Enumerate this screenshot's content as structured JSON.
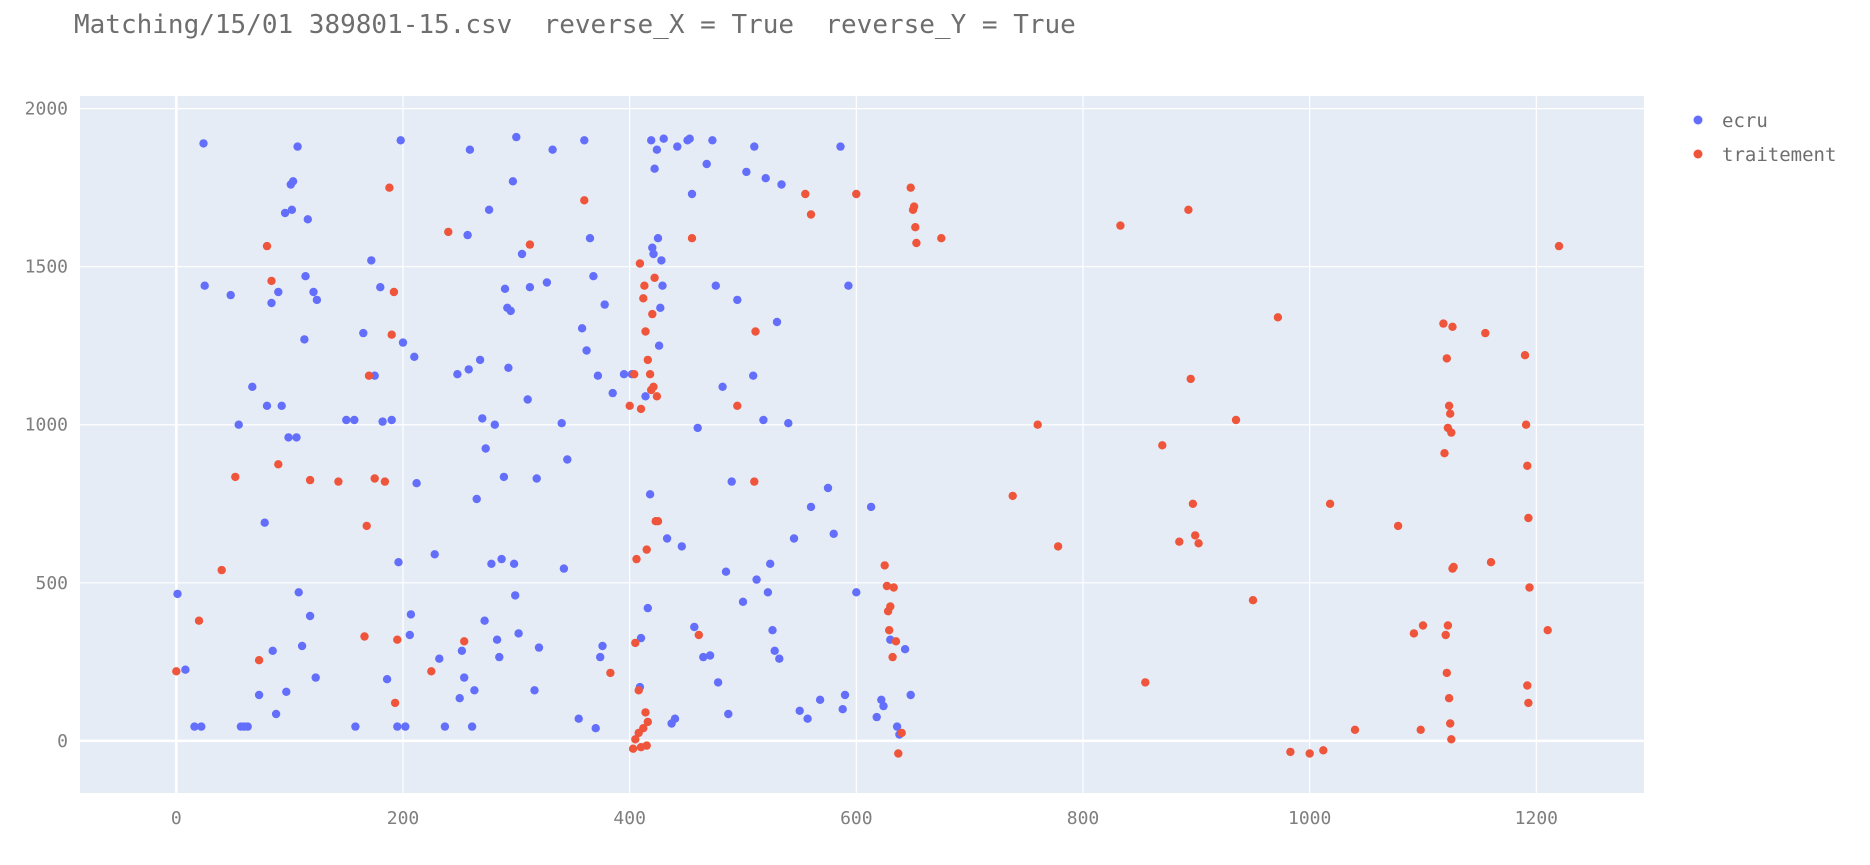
{
  "chart_data": {
    "type": "scatter",
    "title": "Matching/15/01 389801-15.csv  reverse_X = True  reverse_Y = True",
    "xlabel": "",
    "ylabel": "",
    "xlim": [
      -85,
      1295
    ],
    "ylim": [
      -165,
      2040
    ],
    "x_ticks": [
      0,
      200,
      400,
      600,
      800,
      1000,
      1200
    ],
    "y_ticks": [
      0,
      500,
      1000,
      1500,
      2000
    ],
    "x_tick_labels": [
      "0",
      "200",
      "400",
      "600",
      "800",
      "1000",
      "1200"
    ],
    "y_tick_labels": [
      "0",
      "500",
      "1000",
      "1500",
      "2000"
    ],
    "grid": true,
    "legend_position": "top-right",
    "plot_bgcolor": "#E5ECF6",
    "series": [
      {
        "name": "ecru",
        "color": "#636EFA",
        "points": [
          [
            1,
            465
          ],
          [
            8,
            225
          ],
          [
            16,
            45
          ],
          [
            22,
            45
          ],
          [
            24,
            1890
          ],
          [
            25,
            1440
          ],
          [
            48,
            1410
          ],
          [
            55,
            1000
          ],
          [
            57,
            45
          ],
          [
            60,
            45
          ],
          [
            63,
            45
          ],
          [
            67,
            1120
          ],
          [
            73,
            145
          ],
          [
            78,
            690
          ],
          [
            80,
            1060
          ],
          [
            84,
            1385
          ],
          [
            85,
            285
          ],
          [
            88,
            85
          ],
          [
            90,
            1420
          ],
          [
            93,
            1060
          ],
          [
            96,
            1670
          ],
          [
            97,
            155
          ],
          [
            99,
            960
          ],
          [
            101,
            1760
          ],
          [
            102,
            1680
          ],
          [
            103,
            1770
          ],
          [
            106,
            960
          ],
          [
            107,
            1880
          ],
          [
            108,
            470
          ],
          [
            111,
            300
          ],
          [
            113,
            1270
          ],
          [
            114,
            1470
          ],
          [
            116,
            1650
          ],
          [
            118,
            395
          ],
          [
            121,
            1420
          ],
          [
            123,
            200
          ],
          [
            124,
            1395
          ],
          [
            150,
            1015
          ],
          [
            157,
            1015
          ],
          [
            158,
            45
          ],
          [
            165,
            1290
          ],
          [
            172,
            1520
          ],
          [
            175,
            1155
          ],
          [
            180,
            1435
          ],
          [
            182,
            1010
          ],
          [
            186,
            195
          ],
          [
            190,
            1015
          ],
          [
            195,
            45
          ],
          [
            196,
            565
          ],
          [
            198,
            1900
          ],
          [
            200,
            1260
          ],
          [
            202,
            45
          ],
          [
            206,
            335
          ],
          [
            207,
            400
          ],
          [
            210,
            1215
          ],
          [
            212,
            815
          ],
          [
            228,
            590
          ],
          [
            232,
            260
          ],
          [
            237,
            45
          ],
          [
            248,
            1160
          ],
          [
            250,
            135
          ],
          [
            252,
            285
          ],
          [
            254,
            200
          ],
          [
            257,
            1600
          ],
          [
            258,
            1175
          ],
          [
            259,
            1870
          ],
          [
            261,
            45
          ],
          [
            263,
            160
          ],
          [
            265,
            765
          ],
          [
            268,
            1205
          ],
          [
            270,
            1020
          ],
          [
            272,
            380
          ],
          [
            273,
            925
          ],
          [
            276,
            1680
          ],
          [
            278,
            560
          ],
          [
            281,
            1000
          ],
          [
            283,
            320
          ],
          [
            285,
            265
          ],
          [
            287,
            575
          ],
          [
            289,
            835
          ],
          [
            290,
            1430
          ],
          [
            292,
            1370
          ],
          [
            293,
            1180
          ],
          [
            295,
            1360
          ],
          [
            297,
            1770
          ],
          [
            298,
            560
          ],
          [
            299,
            460
          ],
          [
            300,
            1910
          ],
          [
            302,
            340
          ],
          [
            305,
            1540
          ],
          [
            310,
            1080
          ],
          [
            312,
            1435
          ],
          [
            316,
            160
          ],
          [
            318,
            830
          ],
          [
            320,
            295
          ],
          [
            327,
            1450
          ],
          [
            332,
            1870
          ],
          [
            340,
            1005
          ],
          [
            342,
            545
          ],
          [
            345,
            890
          ],
          [
            355,
            70
          ],
          [
            358,
            1305
          ],
          [
            360,
            1900
          ],
          [
            362,
            1235
          ],
          [
            365,
            1590
          ],
          [
            368,
            1470
          ],
          [
            370,
            40
          ],
          [
            372,
            1155
          ],
          [
            374,
            265
          ],
          [
            376,
            300
          ],
          [
            378,
            1380
          ],
          [
            385,
            1100
          ],
          [
            395,
            1160
          ],
          [
            402,
            1160
          ],
          [
            409,
            170
          ],
          [
            410,
            325
          ],
          [
            414,
            1090
          ],
          [
            416,
            420
          ],
          [
            418,
            780
          ],
          [
            419,
            1900
          ],
          [
            420,
            1560
          ],
          [
            421,
            1540
          ],
          [
            422,
            1810
          ],
          [
            424,
            1870
          ],
          [
            425,
            1590
          ],
          [
            426,
            1250
          ],
          [
            427,
            1370
          ],
          [
            428,
            1520
          ],
          [
            429,
            1440
          ],
          [
            430,
            1905
          ],
          [
            433,
            640
          ],
          [
            437,
            55
          ],
          [
            440,
            70
          ],
          [
            442,
            1880
          ],
          [
            446,
            615
          ],
          [
            451,
            1900
          ],
          [
            453,
            1905
          ],
          [
            455,
            1730
          ],
          [
            457,
            360
          ],
          [
            460,
            990
          ],
          [
            465,
            265
          ],
          [
            468,
            1825
          ],
          [
            471,
            270
          ],
          [
            473,
            1900
          ],
          [
            476,
            1440
          ],
          [
            478,
            185
          ],
          [
            482,
            1120
          ],
          [
            485,
            535
          ],
          [
            487,
            85
          ],
          [
            490,
            820
          ],
          [
            495,
            1395
          ],
          [
            500,
            440
          ],
          [
            503,
            1800
          ],
          [
            509,
            1155
          ],
          [
            510,
            1880
          ],
          [
            512,
            510
          ],
          [
            518,
            1015
          ],
          [
            520,
            1780
          ],
          [
            522,
            470
          ],
          [
            524,
            560
          ],
          [
            526,
            350
          ],
          [
            528,
            285
          ],
          [
            530,
            1325
          ],
          [
            532,
            260
          ],
          [
            534,
            1760
          ],
          [
            540,
            1005
          ],
          [
            545,
            640
          ],
          [
            550,
            95
          ],
          [
            557,
            70
          ],
          [
            560,
            740
          ],
          [
            568,
            130
          ],
          [
            575,
            800
          ],
          [
            580,
            655
          ],
          [
            586,
            1880
          ],
          [
            588,
            100
          ],
          [
            590,
            145
          ],
          [
            593,
            1440
          ],
          [
            600,
            470
          ],
          [
            613,
            740
          ],
          [
            618,
            75
          ],
          [
            622,
            130
          ],
          [
            624,
            110
          ],
          [
            630,
            320
          ],
          [
            636,
            45
          ],
          [
            638,
            20
          ],
          [
            643,
            290
          ],
          [
            648,
            145
          ]
        ]
      },
      {
        "name": "traitement",
        "color": "#EF553B",
        "points": [
          [
            0,
            220
          ],
          [
            20,
            380
          ],
          [
            40,
            540
          ],
          [
            52,
            835
          ],
          [
            73,
            255
          ],
          [
            80,
            1565
          ],
          [
            84,
            1455
          ],
          [
            90,
            875
          ],
          [
            118,
            825
          ],
          [
            143,
            820
          ],
          [
            166,
            330
          ],
          [
            168,
            680
          ],
          [
            170,
            1155
          ],
          [
            175,
            830
          ],
          [
            184,
            820
          ],
          [
            188,
            1750
          ],
          [
            190,
            1285
          ],
          [
            192,
            1420
          ],
          [
            193,
            120
          ],
          [
            195,
            320
          ],
          [
            225,
            220
          ],
          [
            240,
            1610
          ],
          [
            254,
            315
          ],
          [
            312,
            1570
          ],
          [
            360,
            1710
          ],
          [
            383,
            215
          ],
          [
            400,
            1060
          ],
          [
            404,
            1160
          ],
          [
            405,
            310
          ],
          [
            406,
            575
          ],
          [
            408,
            160
          ],
          [
            409,
            1510
          ],
          [
            410,
            1050
          ],
          [
            412,
            1400
          ],
          [
            413,
            1440
          ],
          [
            414,
            1295
          ],
          [
            415,
            605
          ],
          [
            416,
            1205
          ],
          [
            418,
            1160
          ],
          [
            419,
            1110
          ],
          [
            420,
            1350
          ],
          [
            421,
            1120
          ],
          [
            422,
            1465
          ],
          [
            423,
            695
          ],
          [
            424,
            1090
          ],
          [
            425,
            695
          ],
          [
            403,
            -25
          ],
          [
            405,
            5
          ],
          [
            408,
            25
          ],
          [
            410,
            -20
          ],
          [
            412,
            40
          ],
          [
            414,
            90
          ],
          [
            415,
            -15
          ],
          [
            416,
            60
          ],
          [
            455,
            1590
          ],
          [
            461,
            335
          ],
          [
            495,
            1060
          ],
          [
            510,
            820
          ],
          [
            511,
            1295
          ],
          [
            555,
            1730
          ],
          [
            560,
            1665
          ],
          [
            600,
            1730
          ],
          [
            625,
            555
          ],
          [
            627,
            490
          ],
          [
            628,
            410
          ],
          [
            629,
            350
          ],
          [
            630,
            425
          ],
          [
            632,
            265
          ],
          [
            633,
            485
          ],
          [
            635,
            315
          ],
          [
            637,
            -40
          ],
          [
            640,
            25
          ],
          [
            648,
            1750
          ],
          [
            650,
            1680
          ],
          [
            651,
            1690
          ],
          [
            652,
            1625
          ],
          [
            653,
            1575
          ],
          [
            675,
            1590
          ],
          [
            738,
            775
          ],
          [
            760,
            1000
          ],
          [
            778,
            615
          ],
          [
            833,
            1630
          ],
          [
            855,
            185
          ],
          [
            870,
            935
          ],
          [
            885,
            630
          ],
          [
            893,
            1680
          ],
          [
            895,
            1145
          ],
          [
            897,
            750
          ],
          [
            899,
            650
          ],
          [
            902,
            625
          ],
          [
            935,
            1015
          ],
          [
            950,
            445
          ],
          [
            972,
            1340
          ],
          [
            983,
            -35
          ],
          [
            1000,
            -40
          ],
          [
            1012,
            -30
          ],
          [
            1018,
            750
          ],
          [
            1040,
            35
          ],
          [
            1078,
            680
          ],
          [
            1092,
            340
          ],
          [
            1098,
            35
          ],
          [
            1100,
            365
          ],
          [
            1118,
            1320
          ],
          [
            1120,
            335
          ],
          [
            1121,
            1210
          ],
          [
            1122,
            990
          ],
          [
            1123,
            1060
          ],
          [
            1124,
            1035
          ],
          [
            1125,
            975
          ],
          [
            1126,
            545
          ],
          [
            1119,
            910
          ],
          [
            1121,
            215
          ],
          [
            1122,
            365
          ],
          [
            1123,
            135
          ],
          [
            1124,
            55
          ],
          [
            1125,
            5
          ],
          [
            1127,
            550
          ],
          [
            1126,
            1310
          ],
          [
            1155,
            1290
          ],
          [
            1160,
            565
          ],
          [
            1190,
            1220
          ],
          [
            1191,
            1000
          ],
          [
            1192,
            870
          ],
          [
            1193,
            705
          ],
          [
            1194,
            485
          ],
          [
            1192,
            175
          ],
          [
            1193,
            120
          ],
          [
            1210,
            350
          ],
          [
            1220,
            1565
          ]
        ]
      }
    ]
  }
}
